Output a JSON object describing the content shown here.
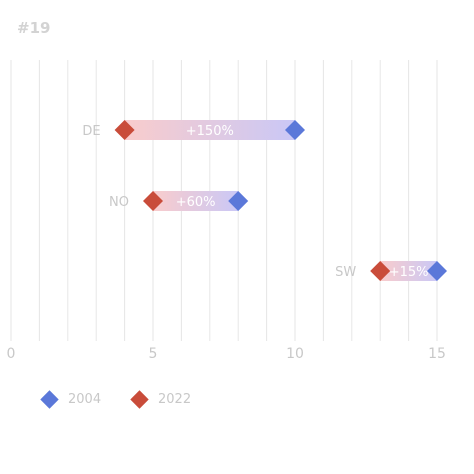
{
  "chart_data": {
    "type": "dumbbell",
    "title": "#19",
    "categories": [
      "DE",
      "NO",
      "SW"
    ],
    "series": [
      {
        "name": "2004",
        "values": [
          10,
          8,
          15
        ],
        "color": "#5b78d9"
      },
      {
        "name": "2022",
        "values": [
          4,
          5,
          13
        ],
        "color": "#c94c3a"
      }
    ],
    "labels": [
      "+150%",
      "+60%",
      "+15%"
    ],
    "xlim": [
      0,
      15.5
    ],
    "xticks": [
      0,
      5,
      10,
      15
    ],
    "grid": true,
    "legend_position": "bottom-left"
  }
}
